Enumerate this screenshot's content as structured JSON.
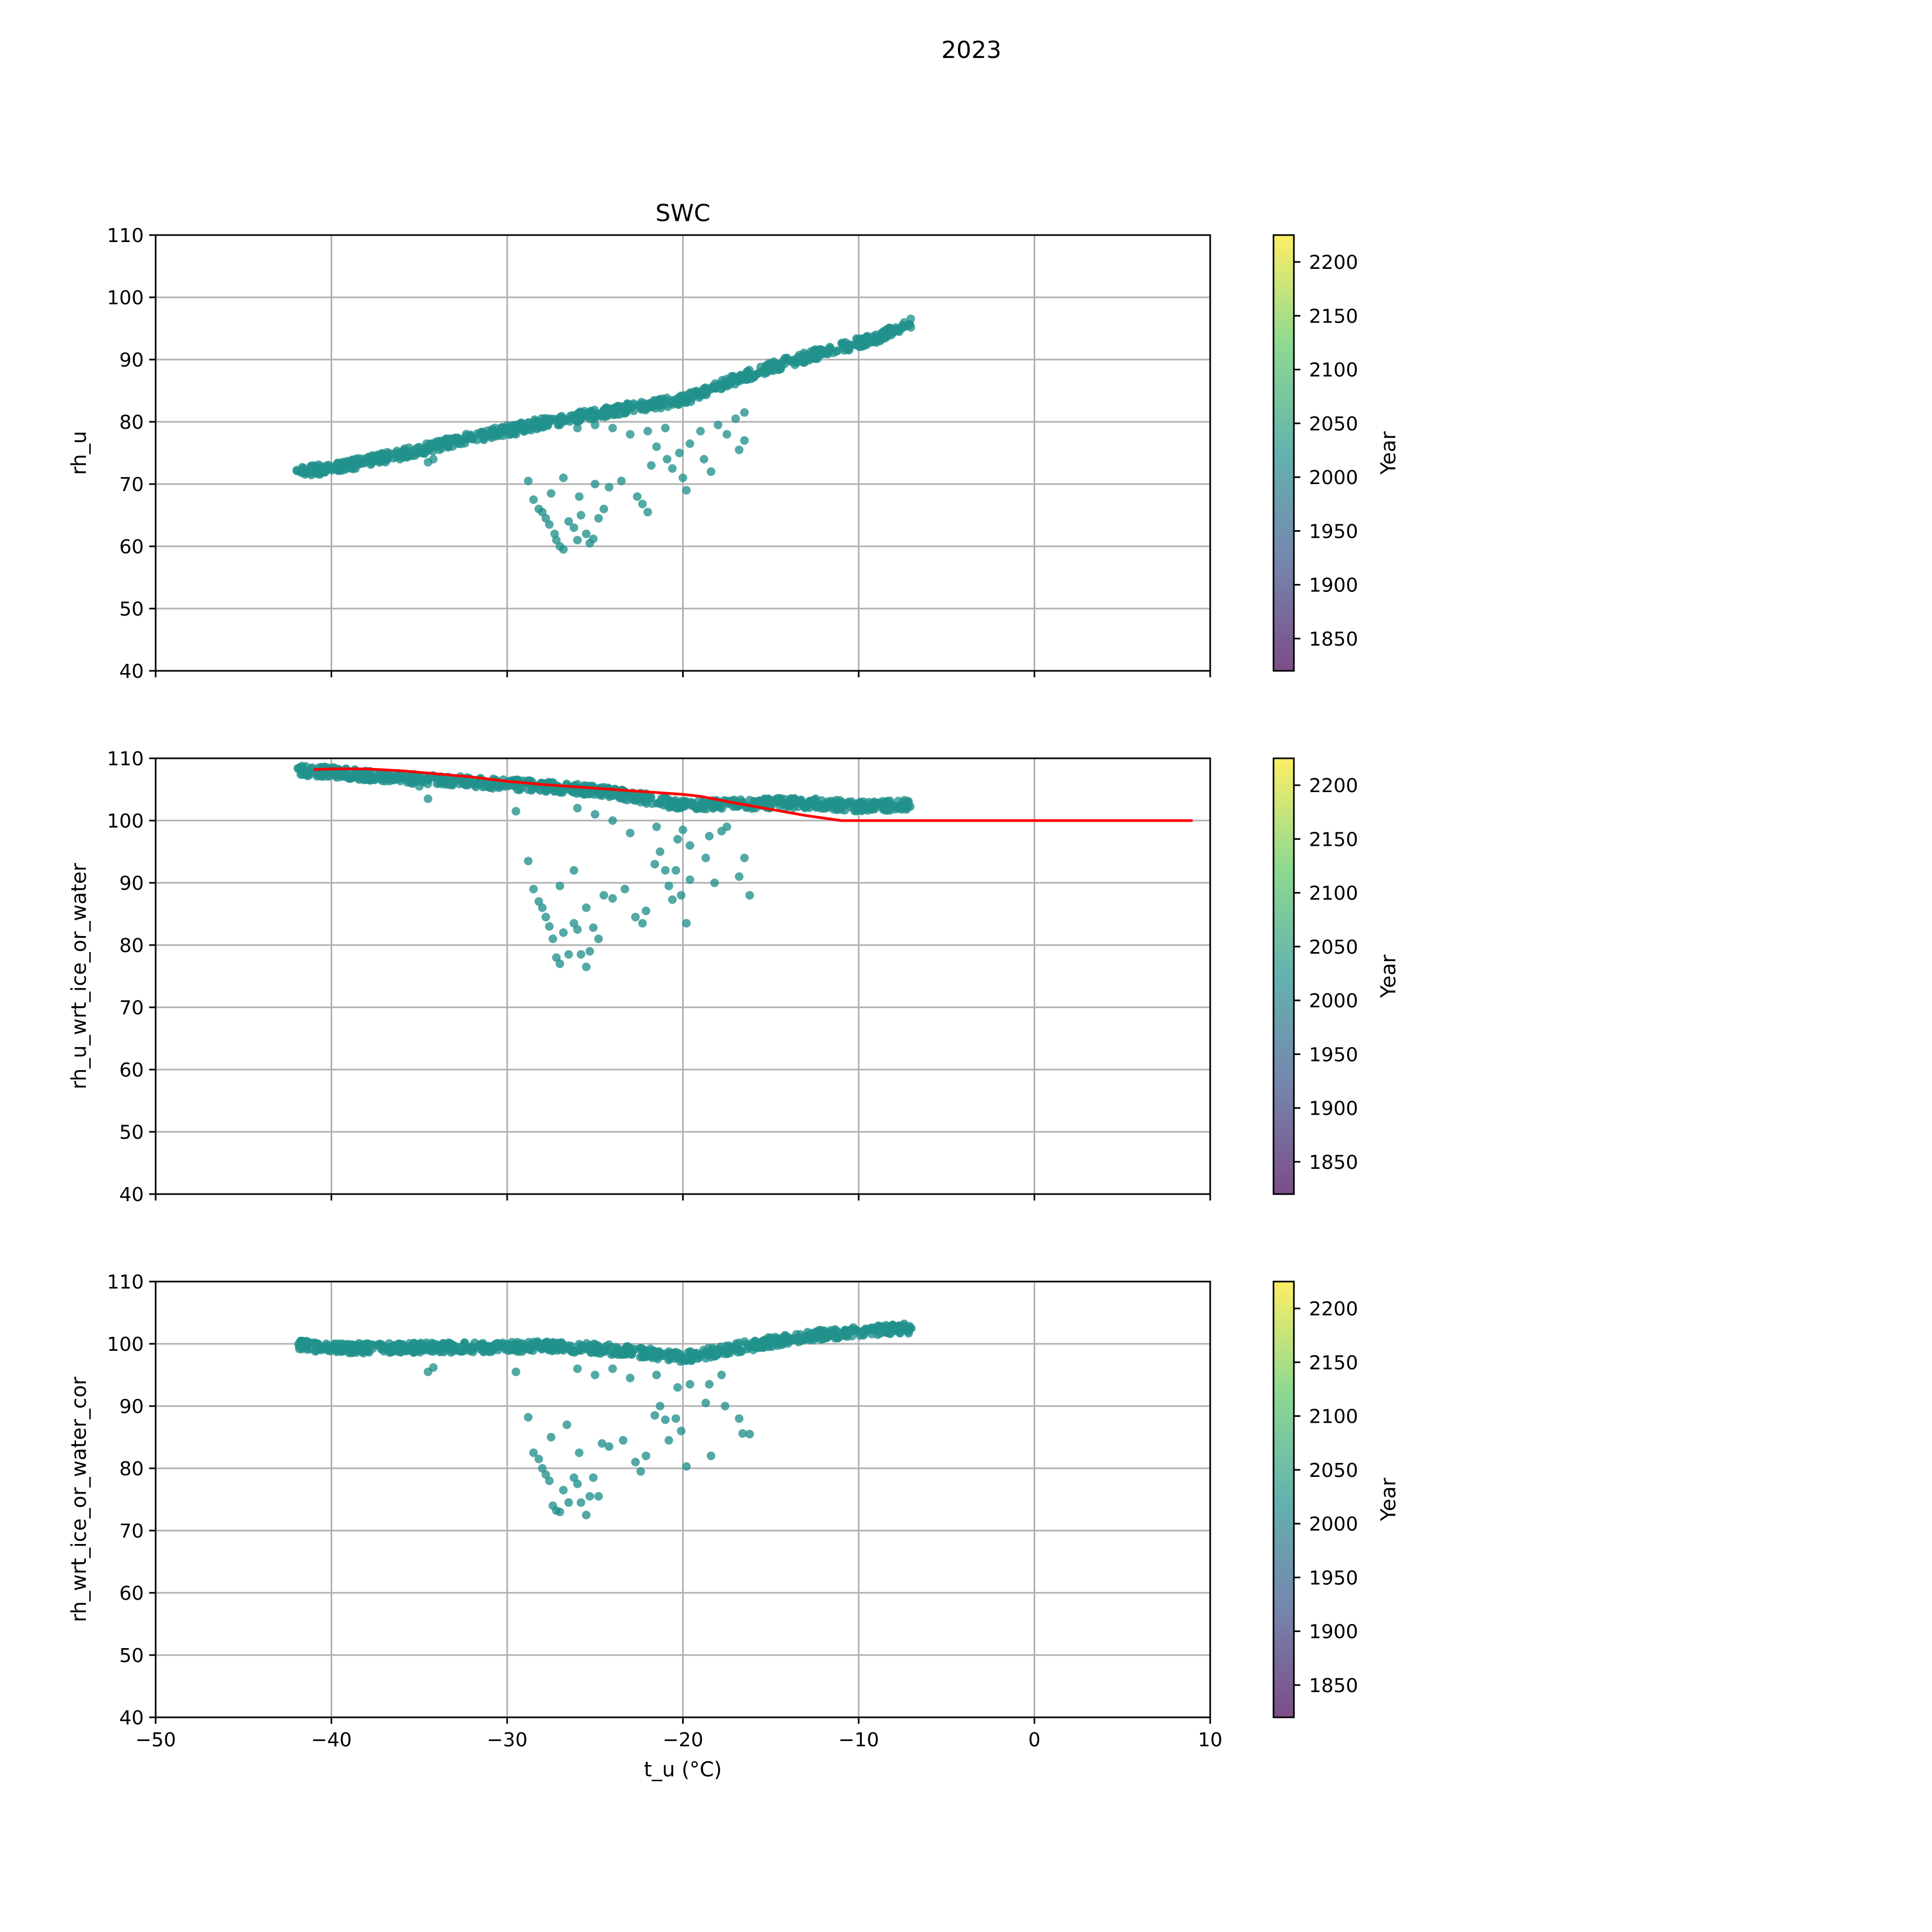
{
  "figure": {
    "suptitle": "2023"
  },
  "colors": {
    "point": "#21918c",
    "line": "#ff0000",
    "grid": "#b0b0b0",
    "colormap": [
      "#440154",
      "#3b528b",
      "#21918c",
      "#5ec962",
      "#fde725"
    ]
  },
  "colorbar": {
    "label": "Year",
    "range": [
      1820,
      2225
    ],
    "ticks": [
      1850,
      1900,
      1950,
      2000,
      2050,
      2100,
      2150,
      2200
    ],
    "alpha": 0.7
  },
  "chart_data": [
    {
      "type": "scatter",
      "title": "SWC",
      "xlabel": "",
      "ylabel": "rh_u",
      "xlim": [
        -50,
        10
      ],
      "ylim": [
        40,
        110
      ],
      "xticks": [
        -50,
        -40,
        -30,
        -20,
        -10,
        0,
        10
      ],
      "yticks": [
        40,
        50,
        60,
        70,
        80,
        90,
        100,
        110
      ],
      "show_xticklabels": false,
      "grid": true,
      "band": {
        "description": "dense diagonal band",
        "points": [
          [
            -42,
            72
          ],
          [
            -40,
            72.5
          ],
          [
            -36,
            74.8
          ],
          [
            -32,
            77.5
          ],
          [
            -28,
            79.8
          ],
          [
            -24,
            81.8
          ],
          [
            -20,
            83.5
          ],
          [
            -18,
            85.8
          ],
          [
            -15,
            88.8
          ],
          [
            -12,
            91.2
          ],
          [
            -9,
            93.5
          ],
          [
            -7,
            96
          ]
        ]
      },
      "scatter": [
        [
          -28.8,
          70.5
        ],
        [
          -28.5,
          67.5
        ],
        [
          -28.2,
          66
        ],
        [
          -28,
          65.5
        ],
        [
          -27.8,
          64.5
        ],
        [
          -27.6,
          63.5
        ],
        [
          -27.3,
          62
        ],
        [
          -27.2,
          61
        ],
        [
          -27,
          60
        ],
        [
          -26.8,
          59.5
        ],
        [
          -26.5,
          64
        ],
        [
          -26.2,
          63
        ],
        [
          -26,
          61
        ],
        [
          -25.8,
          65
        ],
        [
          -25.5,
          62
        ],
        [
          -25.3,
          60.5
        ],
        [
          -25.1,
          61.2
        ],
        [
          -24.8,
          64.5
        ],
        [
          -24.5,
          66
        ],
        [
          -27.5,
          68.5
        ],
        [
          -26.8,
          71
        ],
        [
          -25.9,
          68
        ],
        [
          -25,
          70
        ],
        [
          -24.2,
          69.5
        ],
        [
          -23.5,
          70.5
        ],
        [
          -22.6,
          68
        ],
        [
          -22.3,
          66.8
        ],
        [
          -22,
          65.5
        ],
        [
          -21.8,
          73
        ],
        [
          -21.5,
          76
        ],
        [
          -20.9,
          74
        ],
        [
          -20.6,
          72.5
        ],
        [
          -20.2,
          75
        ],
        [
          -20,
          71
        ],
        [
          -19.8,
          69
        ],
        [
          -19.6,
          76.5
        ],
        [
          -18.8,
          74
        ],
        [
          -18.4,
          72
        ],
        [
          -17.5,
          78
        ],
        [
          -16.8,
          75.5
        ],
        [
          -16.5,
          77
        ],
        [
          -21,
          79
        ],
        [
          -22,
          78.5
        ],
        [
          -23,
          78
        ],
        [
          -24,
          79
        ],
        [
          -25,
          79.5
        ],
        [
          -26,
          79
        ],
        [
          -27,
          79.5
        ],
        [
          -19,
          78.5
        ],
        [
          -18,
          79.5
        ],
        [
          -17,
          80.5
        ],
        [
          -16.5,
          81.5
        ],
        [
          -29.5,
          78
        ],
        [
          -34.5,
          73.5
        ],
        [
          -34.2,
          74
        ]
      ]
    },
    {
      "type": "scatter",
      "title": "",
      "xlabel": "",
      "ylabel": "rh_u_wrt_ice_or_water",
      "xlim": [
        -50,
        10
      ],
      "ylim": [
        40,
        110
      ],
      "xticks": [
        -50,
        -40,
        -30,
        -20,
        -10,
        0,
        10
      ],
      "yticks": [
        40,
        50,
        60,
        70,
        80,
        90,
        100,
        110
      ],
      "show_xticklabels": false,
      "grid": true,
      "band": {
        "description": "dense band",
        "points": [
          [
            -42,
            108
          ],
          [
            -40,
            107.8
          ],
          [
            -37,
            107
          ],
          [
            -34,
            106.5
          ],
          [
            -31,
            106
          ],
          [
            -28,
            105.5
          ],
          [
            -25,
            104.8
          ],
          [
            -22,
            103.5
          ],
          [
            -20,
            102.5
          ],
          [
            -18,
            102.5
          ],
          [
            -15,
            102.8
          ],
          [
            -13,
            102.8
          ],
          [
            -10,
            102.3
          ],
          [
            -7,
            102.5
          ]
        ]
      },
      "line": {
        "x": [
          -41,
          -40,
          -38,
          -36,
          -34,
          -32,
          -30,
          -28,
          -26,
          -24,
          -22,
          -20,
          -19,
          -17,
          -15,
          -13,
          -11,
          -9,
          -7,
          -5,
          -3,
          -1,
          1,
          3,
          5,
          7,
          9
        ],
        "y": [
          108.2,
          108.3,
          108.3,
          108,
          107.5,
          107,
          106.3,
          105.8,
          105.4,
          105.0,
          104.6,
          104.2,
          103.9,
          102.8,
          101.8,
          100.8,
          100,
          100,
          100,
          100,
          100,
          100,
          100,
          100,
          100,
          100,
          100
        ]
      },
      "scatter": [
        [
          -28.8,
          93.5
        ],
        [
          -28.5,
          89
        ],
        [
          -28.2,
          87
        ],
        [
          -28,
          86
        ],
        [
          -27.8,
          84.5
        ],
        [
          -27.6,
          83
        ],
        [
          -27.4,
          81
        ],
        [
          -27.2,
          78
        ],
        [
          -27,
          77
        ],
        [
          -26.8,
          82
        ],
        [
          -26.5,
          78.5
        ],
        [
          -26.2,
          83.5
        ],
        [
          -26,
          82.5
        ],
        [
          -25.8,
          78.5
        ],
        [
          -25.5,
          76.5
        ],
        [
          -25.3,
          79
        ],
        [
          -25.1,
          82.8
        ],
        [
          -24.8,
          81
        ],
        [
          -27,
          89.5
        ],
        [
          -26.2,
          92
        ],
        [
          -25.5,
          86
        ],
        [
          -24.5,
          88
        ],
        [
          -24,
          87.5
        ],
        [
          -23.3,
          89
        ],
        [
          -22.7,
          84.5
        ],
        [
          -22.3,
          83.5
        ],
        [
          -22.1,
          85.5
        ],
        [
          -21.6,
          93
        ],
        [
          -21.3,
          95
        ],
        [
          -21,
          92
        ],
        [
          -20.8,
          89.5
        ],
        [
          -20.4,
          92
        ],
        [
          -20.1,
          88
        ],
        [
          -19.8,
          83.5
        ],
        [
          -19.6,
          96
        ],
        [
          -18.7,
          94
        ],
        [
          -18.2,
          90
        ],
        [
          -17.5,
          99
        ],
        [
          -16.8,
          91
        ],
        [
          -16.5,
          94
        ],
        [
          -16.2,
          88
        ],
        [
          -20.3,
          97
        ],
        [
          -21.5,
          99
        ],
        [
          -23,
          98
        ],
        [
          -24,
          100
        ],
        [
          -25,
          101
        ],
        [
          -26,
          102
        ],
        [
          -20,
          98.5
        ],
        [
          -18.5,
          97.5
        ],
        [
          -17.8,
          98.3
        ],
        [
          -29.5,
          101.5
        ],
        [
          -34.5,
          103.5
        ],
        [
          -35,
          105.5
        ],
        [
          -19.6,
          90.5
        ],
        [
          -20.6,
          87.3
        ]
      ]
    },
    {
      "type": "scatter",
      "title": "",
      "xlabel": "t_u (°C)",
      "ylabel": "rh_wrt_ice_or_water_cor",
      "xlim": [
        -50,
        10
      ],
      "ylim": [
        40,
        110
      ],
      "xticks": [
        -50,
        -40,
        -30,
        -20,
        -10,
        0,
        10
      ],
      "yticks": [
        40,
        50,
        60,
        70,
        80,
        90,
        100,
        110
      ],
      "show_xticklabels": true,
      "grid": true,
      "band": {
        "description": "dense band",
        "points": [
          [
            -42,
            99.8
          ],
          [
            -40,
            99.3
          ],
          [
            -37,
            99.3
          ],
          [
            -34,
            99.4
          ],
          [
            -31,
            99.4
          ],
          [
            -28,
            99.6
          ],
          [
            -25,
            99.3
          ],
          [
            -22,
            98.5
          ],
          [
            -20,
            97.8
          ],
          [
            -18,
            98.8
          ],
          [
            -15,
            100.3
          ],
          [
            -13,
            101.2
          ],
          [
            -10,
            102
          ],
          [
            -7,
            102.5
          ]
        ]
      },
      "scatter": [
        [
          -28.8,
          88.2
        ],
        [
          -28.5,
          82.5
        ],
        [
          -28.2,
          81.5
        ],
        [
          -28,
          80
        ],
        [
          -27.8,
          79
        ],
        [
          -27.6,
          78
        ],
        [
          -27.4,
          74
        ],
        [
          -27.2,
          73.2
        ],
        [
          -27,
          73
        ],
        [
          -26.8,
          76.5
        ],
        [
          -26.5,
          74.5
        ],
        [
          -26.2,
          78.5
        ],
        [
          -26,
          77.5
        ],
        [
          -25.8,
          74.5
        ],
        [
          -25.5,
          72.5
        ],
        [
          -25.3,
          75.5
        ],
        [
          -25.1,
          78.5
        ],
        [
          -24.8,
          75.5
        ],
        [
          -27.5,
          85
        ],
        [
          -26.6,
          87
        ],
        [
          -25.9,
          82.5
        ],
        [
          -24.6,
          84
        ],
        [
          -24.2,
          83.5
        ],
        [
          -23.4,
          84.5
        ],
        [
          -22.7,
          81
        ],
        [
          -22.4,
          79.5
        ],
        [
          -22.1,
          82
        ],
        [
          -21.6,
          88.5
        ],
        [
          -21.3,
          90
        ],
        [
          -21,
          87.8
        ],
        [
          -20.8,
          84.5
        ],
        [
          -20.4,
          88
        ],
        [
          -20.1,
          86
        ],
        [
          -19.8,
          80.3
        ],
        [
          -19.6,
          93.5
        ],
        [
          -18.7,
          90.5
        ],
        [
          -18.4,
          82
        ],
        [
          -17.6,
          90
        ],
        [
          -16.8,
          88
        ],
        [
          -16.6,
          85.6
        ],
        [
          -16.2,
          85.5
        ],
        [
          -20.3,
          93
        ],
        [
          -21.5,
          95
        ],
        [
          -23,
          94.5
        ],
        [
          -24,
          96
        ],
        [
          -25,
          95
        ],
        [
          -26,
          96
        ],
        [
          -18.5,
          93.5
        ],
        [
          -17.8,
          95
        ],
        [
          -29.5,
          95.5
        ],
        [
          -34.5,
          95.5
        ],
        [
          -34.2,
          96.2
        ]
      ]
    }
  ]
}
